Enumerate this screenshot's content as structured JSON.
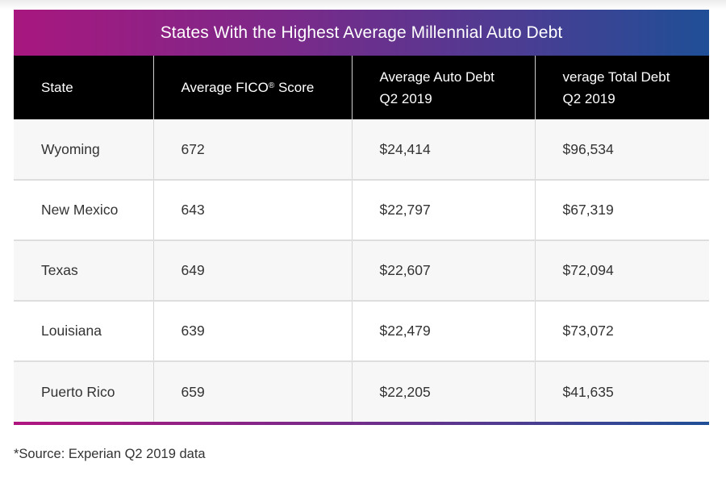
{
  "table": {
    "title": "States With the Highest Average Millennial Auto Debt",
    "headers": [
      {
        "line1": "State",
        "line2": ""
      },
      {
        "line1": "Average FICO",
        "sup": "®",
        "line1_suffix": " Score",
        "line2": ""
      },
      {
        "line1": "Average Auto Debt",
        "line2": "Q2 2019"
      },
      {
        "line1": "verage Total Debt",
        "line2": "Q2 2019"
      }
    ],
    "rows": [
      {
        "state": "Wyoming",
        "fico": "672",
        "auto_debt": "$24,414",
        "total_debt": "$96,534"
      },
      {
        "state": "New Mexico",
        "fico": "643",
        "auto_debt": "$22,797",
        "total_debt": "$67,319"
      },
      {
        "state": "Texas",
        "fico": "649",
        "auto_debt": "$22,607",
        "total_debt": "$72,094"
      },
      {
        "state": "Louisiana",
        "fico": "639",
        "auto_debt": "$22,479",
        "total_debt": "$73,072"
      },
      {
        "state": "Puerto Rico",
        "fico": "659",
        "auto_debt": "$22,205",
        "total_debt": "$41,635"
      }
    ]
  },
  "footnote": "*Source: Experian Q2 2019 data",
  "colors": {
    "gradient_start": "#a8177f",
    "gradient_end": "#1f4f97",
    "header_bg": "#000000",
    "row_alt_bg": "#f7f7f7"
  }
}
